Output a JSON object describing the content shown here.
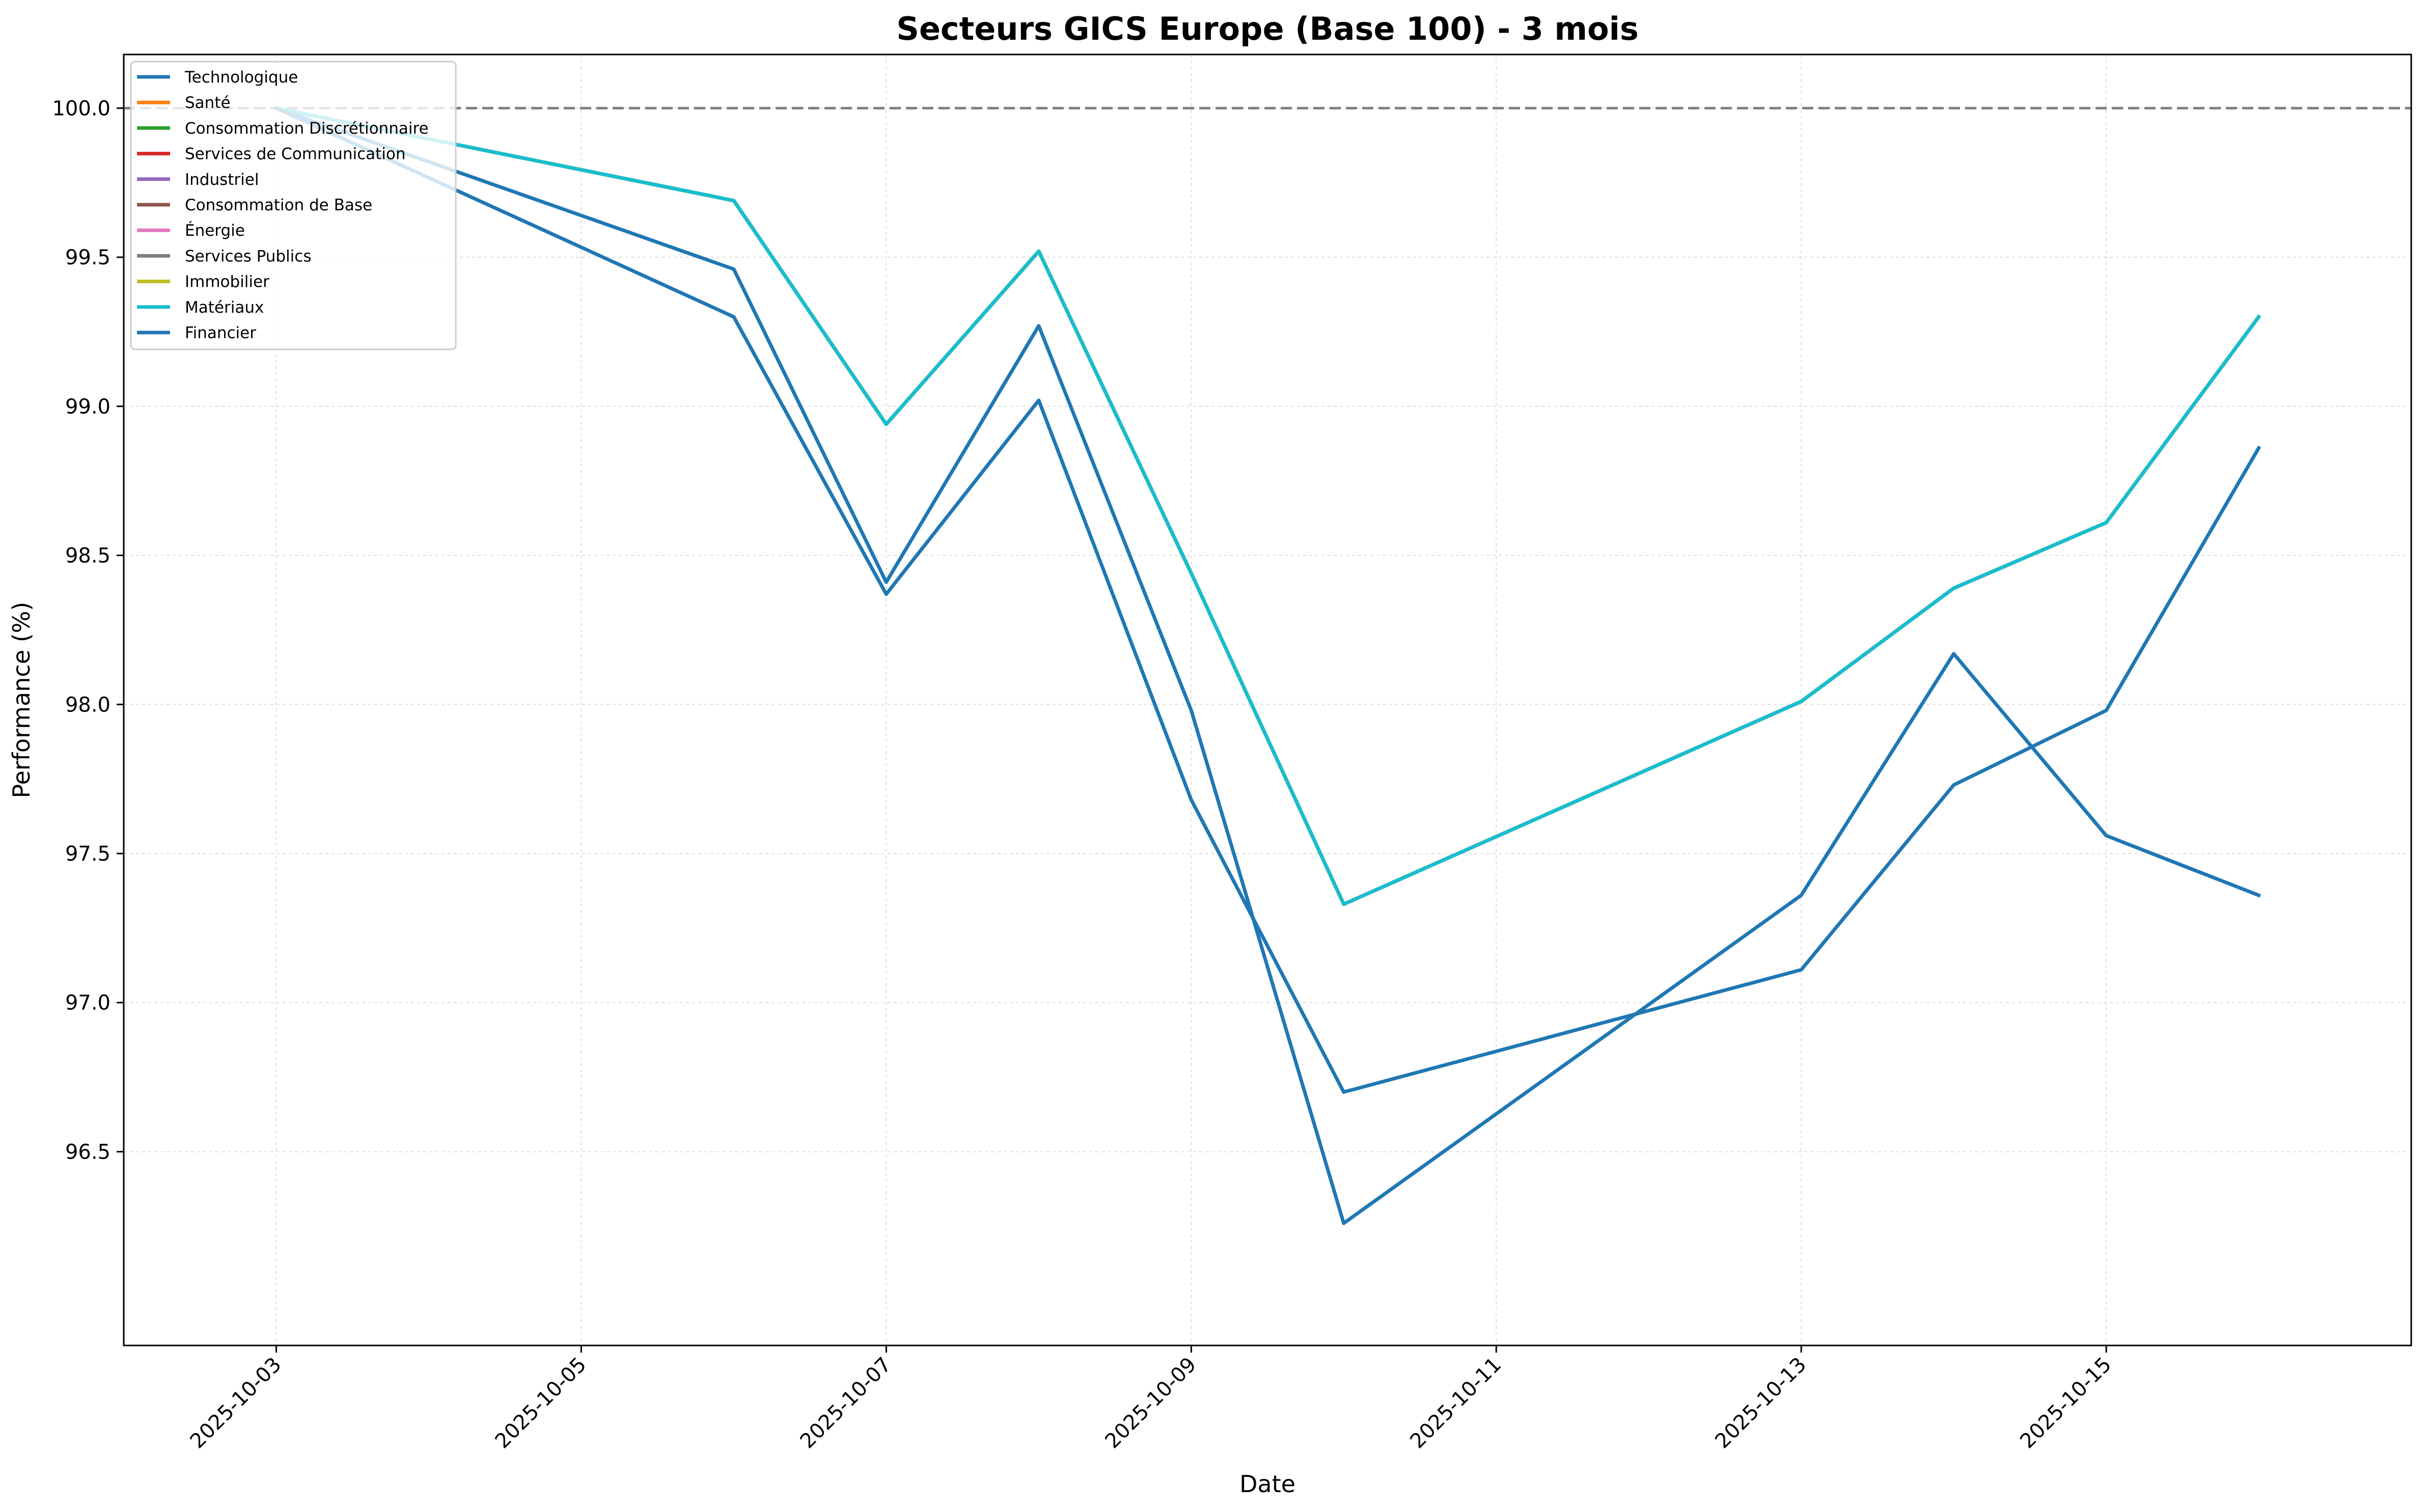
{
  "chart_data": {
    "type": "line",
    "title": "Secteurs GICS Europe (Base 100) - 3 mois",
    "xlabel": "Date",
    "ylabel": "Performance (%)",
    "xlim": [
      "2025-10-02",
      "2025-10-17"
    ],
    "ylim": [
      95.85,
      100.18
    ],
    "x_ticks": [
      "2025-10-03",
      "2025-10-05",
      "2025-10-07",
      "2025-10-09",
      "2025-10-11",
      "2025-10-13",
      "2025-10-15"
    ],
    "y_ticks": [
      96.5,
      97.0,
      97.5,
      98.0,
      98.5,
      99.0,
      99.5,
      100.0
    ],
    "grid": true,
    "legend_position": "top-left",
    "reference_line": {
      "y": 100.0,
      "style": "dashed",
      "color": "#808080"
    },
    "x": [
      "2025-10-03",
      "2025-10-06",
      "2025-10-07",
      "2025-10-08",
      "2025-10-09",
      "2025-10-10",
      "2025-10-13",
      "2025-10-14",
      "2025-10-15",
      "2025-10-16"
    ],
    "series": [
      {
        "name": "Technologique",
        "color": "#1f77b4",
        "values": [
          100.0,
          99.46,
          98.41,
          99.27,
          97.98,
          96.26,
          97.36,
          98.17,
          97.56,
          97.36
        ]
      },
      {
        "name": "Santé",
        "color": "#ff7f0e",
        "values": [
          100.0,
          99.69,
          98.94,
          99.52,
          98.44,
          97.33,
          98.01,
          98.39,
          98.61,
          99.3
        ]
      },
      {
        "name": "Consommation Discrétionnaire",
        "color": "#2ca02c",
        "values": [
          100.0,
          99.69,
          98.94,
          99.52,
          98.44,
          97.33,
          98.01,
          98.39,
          98.61,
          99.3
        ]
      },
      {
        "name": "Services de Communication",
        "color": "#d62728",
        "values": [
          100.0,
          99.69,
          98.94,
          99.52,
          98.44,
          97.33,
          98.01,
          98.39,
          98.61,
          99.3
        ]
      },
      {
        "name": "Industriel",
        "color": "#9467bd",
        "values": [
          100.0,
          99.69,
          98.94,
          99.52,
          98.44,
          97.33,
          98.01,
          98.39,
          98.61,
          99.3
        ]
      },
      {
        "name": "Consommation de Base",
        "color": "#8c564b",
        "values": [
          100.0,
          99.69,
          98.94,
          99.52,
          98.44,
          97.33,
          98.01,
          98.39,
          98.61,
          99.3
        ]
      },
      {
        "name": "Énergie",
        "color": "#e377c2",
        "values": [
          100.0,
          99.69,
          98.94,
          99.52,
          98.44,
          97.33,
          98.01,
          98.39,
          98.61,
          99.3
        ]
      },
      {
        "name": "Services Publics",
        "color": "#7f7f7f",
        "values": [
          100.0,
          99.69,
          98.94,
          99.52,
          98.44,
          97.33,
          98.01,
          98.39,
          98.61,
          99.3
        ]
      },
      {
        "name": "Immobilier",
        "color": "#bcbd22",
        "values": [
          100.0,
          99.69,
          98.94,
          99.52,
          98.44,
          97.33,
          98.01,
          98.39,
          98.61,
          99.3
        ]
      },
      {
        "name": "Matériaux",
        "color": "#17becf",
        "values": [
          100.0,
          99.69,
          98.94,
          99.52,
          98.44,
          97.33,
          98.01,
          98.39,
          98.61,
          99.3
        ]
      },
      {
        "name": "Financier",
        "color": "#1f77b4",
        "values": [
          100.0,
          99.3,
          98.37,
          99.02,
          97.68,
          96.7,
          97.11,
          97.73,
          97.98,
          98.86
        ]
      }
    ]
  }
}
